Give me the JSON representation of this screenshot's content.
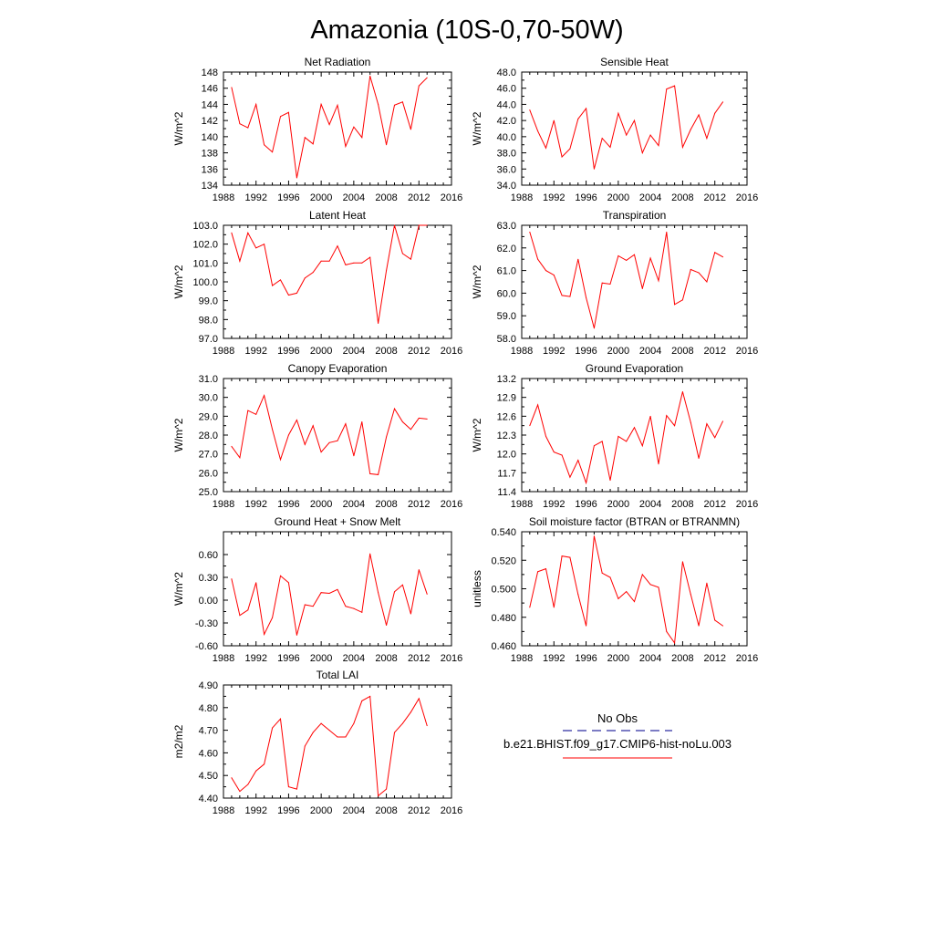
{
  "figure_title": "Amazonia (10S-0,70-50W)",
  "legend": {
    "obs_label": "No Obs",
    "obs_color": "#2f2fa0",
    "model_label": "b.e21.BHIST.f09_g17.CMIP6-hist-noLu.003",
    "model_color": "#ff0000"
  },
  "chart_data": [
    {
      "type": "line",
      "title": "Net Radiation",
      "ylabel": "W/m^2",
      "xlim": [
        1988,
        2016
      ],
      "ylim": [
        134,
        148
      ],
      "xticks": [
        "1988",
        "1992",
        "1996",
        "2000",
        "2004",
        "2008",
        "2012",
        "2016"
      ],
      "yticks": [
        "134",
        "136",
        "138",
        "140",
        "142",
        "144",
        "146",
        "148"
      ],
      "series": [
        {
          "x": [
            1989,
            1990,
            1991,
            1992,
            1993,
            1994,
            1995,
            1996,
            1997,
            1998,
            1999,
            2000,
            2001,
            2002,
            2003,
            2004,
            2005,
            2006,
            2007,
            2008,
            2009,
            2010,
            2011,
            2012,
            2013
          ],
          "values": [
            146.1,
            141.6,
            141.1,
            144.0,
            139.0,
            138.1,
            142.5,
            143.0,
            134.9,
            139.9,
            139.1,
            144.0,
            141.5,
            143.9,
            138.8,
            141.2,
            139.9,
            147.5,
            144.0,
            139.0,
            143.9,
            144.3,
            140.9,
            146.3,
            147.3
          ]
        }
      ]
    },
    {
      "type": "line",
      "title": "Sensible Heat",
      "ylabel": "W/m^2",
      "xlim": [
        1988,
        2016
      ],
      "ylim": [
        34.0,
        48.0
      ],
      "xticks": [
        "1988",
        "1992",
        "1996",
        "2000",
        "2004",
        "2008",
        "2012",
        "2016"
      ],
      "yticks": [
        "34.0",
        "36.0",
        "38.0",
        "40.0",
        "42.0",
        "44.0",
        "46.0",
        "48.0"
      ],
      "series": [
        {
          "x": [
            1989,
            1990,
            1991,
            1992,
            1993,
            1994,
            1995,
            1996,
            1997,
            1998,
            1999,
            2000,
            2001,
            2002,
            2003,
            2004,
            2005,
            2006,
            2007,
            2008,
            2009,
            2010,
            2011,
            2012,
            2013
          ],
          "values": [
            43.3,
            40.7,
            38.6,
            42.0,
            37.5,
            38.5,
            42.2,
            43.5,
            36.0,
            39.8,
            38.7,
            42.9,
            40.2,
            42.0,
            38.0,
            40.2,
            38.9,
            45.9,
            46.3,
            38.7,
            40.9,
            42.7,
            39.8,
            42.9,
            44.3
          ]
        }
      ]
    },
    {
      "type": "line",
      "title": "Latent Heat",
      "ylabel": "W/m^2",
      "xlim": [
        1988,
        2016
      ],
      "ylim": [
        97.0,
        103.0
      ],
      "xticks": [
        "1988",
        "1992",
        "1996",
        "2000",
        "2004",
        "2008",
        "2012",
        "2016"
      ],
      "yticks": [
        "97.0",
        "98.0",
        "99.0",
        "100.0",
        "101.0",
        "102.0",
        "103.0"
      ],
      "series": [
        {
          "x": [
            1989,
            1990,
            1991,
            1992,
            1993,
            1994,
            1995,
            1996,
            1997,
            1998,
            1999,
            2000,
            2001,
            2002,
            2003,
            2004,
            2005,
            2006,
            2007,
            2008,
            2009,
            2010,
            2011,
            2012,
            2013
          ],
          "values": [
            102.6,
            101.1,
            102.6,
            101.8,
            102.0,
            99.8,
            100.1,
            99.3,
            99.4,
            100.2,
            100.5,
            101.1,
            101.1,
            101.9,
            100.9,
            101.0,
            101.0,
            101.3,
            97.8,
            100.6,
            103.0,
            101.5,
            101.2,
            103.0,
            103.0
          ]
        }
      ]
    },
    {
      "type": "line",
      "title": "Transpiration",
      "ylabel": "W/m^2",
      "xlim": [
        1988,
        2016
      ],
      "ylim": [
        58.0,
        63.0
      ],
      "xticks": [
        "1988",
        "1992",
        "1996",
        "2000",
        "2004",
        "2008",
        "2012",
        "2016"
      ],
      "yticks": [
        "58.0",
        "59.0",
        "60.0",
        "61.0",
        "62.0",
        "63.0"
      ],
      "series": [
        {
          "x": [
            1989,
            1990,
            1991,
            1992,
            1993,
            1994,
            1995,
            1996,
            1997,
            1998,
            1999,
            2000,
            2001,
            2002,
            2003,
            2004,
            2005,
            2006,
            2007,
            2008,
            2009,
            2010,
            2011,
            2012,
            2013
          ],
          "values": [
            62.7,
            61.5,
            61.0,
            60.8,
            59.9,
            59.85,
            61.5,
            59.8,
            58.45,
            60.45,
            60.4,
            61.65,
            61.45,
            61.7,
            60.2,
            61.55,
            60.55,
            62.7,
            59.5,
            59.7,
            61.05,
            60.9,
            60.5,
            61.8,
            61.6
          ]
        }
      ]
    },
    {
      "type": "line",
      "title": "Canopy Evaporation",
      "ylabel": "W/m^2",
      "xlim": [
        1988,
        2016
      ],
      "ylim": [
        25.0,
        31.0
      ],
      "xticks": [
        "1988",
        "1992",
        "1996",
        "2000",
        "2004",
        "2008",
        "2012",
        "2016"
      ],
      "yticks": [
        "25.0",
        "26.0",
        "27.0",
        "28.0",
        "29.0",
        "30.0",
        "31.0"
      ],
      "series": [
        {
          "x": [
            1989,
            1990,
            1991,
            1992,
            1993,
            1994,
            1995,
            1996,
            1997,
            1998,
            1999,
            2000,
            2001,
            2002,
            2003,
            2004,
            2005,
            2006,
            2007,
            2008,
            2009,
            2010,
            2011,
            2012,
            2013
          ],
          "values": [
            27.4,
            26.8,
            29.3,
            29.1,
            30.1,
            28.3,
            26.7,
            28.0,
            28.8,
            27.5,
            28.5,
            27.1,
            27.6,
            27.7,
            28.6,
            26.9,
            28.7,
            25.95,
            25.9,
            27.9,
            29.4,
            28.7,
            28.3,
            28.9,
            28.85
          ]
        }
      ]
    },
    {
      "type": "line",
      "title": "Ground Evaporation",
      "ylabel": "W/m^2",
      "xlim": [
        1988,
        2016
      ],
      "ylim": [
        11.4,
        13.2
      ],
      "xticks": [
        "1988",
        "1992",
        "1996",
        "2000",
        "2004",
        "2008",
        "2012",
        "2016"
      ],
      "yticks": [
        "11.4",
        "11.7",
        "12.0",
        "12.3",
        "12.6",
        "12.9",
        "13.2"
      ],
      "series": [
        {
          "x": [
            1989,
            1990,
            1991,
            1992,
            1993,
            1994,
            1995,
            1996,
            1997,
            1998,
            1999,
            2000,
            2001,
            2002,
            2003,
            2004,
            2005,
            2006,
            2007,
            2008,
            2009,
            2010,
            2011,
            2012,
            2013
          ],
          "values": [
            12.45,
            12.78,
            12.28,
            12.03,
            11.98,
            11.63,
            11.9,
            11.54,
            12.13,
            12.2,
            11.58,
            12.28,
            12.2,
            12.42,
            12.13,
            12.6,
            11.84,
            12.61,
            12.45,
            12.99,
            12.5,
            11.93,
            12.48,
            12.26,
            12.52
          ]
        }
      ]
    },
    {
      "type": "line",
      "title": "Ground Heat + Snow Melt",
      "ylabel": "W/m^2",
      "xlim": [
        1988,
        2016
      ],
      "ylim": [
        -0.6,
        0.9
      ],
      "xticks": [
        "1988",
        "1992",
        "1996",
        "2000",
        "2004",
        "2008",
        "2012",
        "2016"
      ],
      "yticks": [
        "-0.60",
        "-0.30",
        "0.00",
        "0.30",
        "0.60"
      ],
      "ytick_values": [
        -0.6,
        -0.3,
        0.0,
        0.3,
        0.6
      ],
      "series": [
        {
          "x": [
            1989,
            1990,
            1991,
            1992,
            1993,
            1994,
            1995,
            1996,
            1997,
            1998,
            1999,
            2000,
            2001,
            2002,
            2003,
            2004,
            2005,
            2006,
            2007,
            2008,
            2009,
            2010,
            2011,
            2012,
            2013
          ],
          "values": [
            0.28,
            -0.2,
            -0.13,
            0.23,
            -0.45,
            -0.23,
            0.32,
            0.23,
            -0.46,
            -0.06,
            -0.08,
            0.1,
            0.09,
            0.14,
            -0.08,
            -0.11,
            -0.16,
            0.61,
            0.1,
            -0.33,
            0.11,
            0.2,
            -0.18,
            0.4,
            0.08
          ]
        }
      ]
    },
    {
      "type": "line",
      "title": "Soil moisture factor (BTRAN or BTRANMN)",
      "ylabel": "unitless",
      "xlim": [
        1988,
        2016
      ],
      "ylim": [
        0.46,
        0.54
      ],
      "xticks": [
        "1988",
        "1992",
        "1996",
        "2000",
        "2004",
        "2008",
        "2012",
        "2016"
      ],
      "yticks": [
        "0.460",
        "0.480",
        "0.500",
        "0.520",
        "0.540"
      ],
      "series": [
        {
          "x": [
            1989,
            1990,
            1991,
            1992,
            1993,
            1994,
            1995,
            1996,
            1997,
            1998,
            1999,
            2000,
            2001,
            2002,
            2003,
            2004,
            2005,
            2006,
            2007,
            2008,
            2009,
            2010,
            2011,
            2012,
            2013
          ],
          "values": [
            0.487,
            0.512,
            0.514,
            0.487,
            0.523,
            0.522,
            0.496,
            0.474,
            0.537,
            0.511,
            0.508,
            0.493,
            0.498,
            0.491,
            0.51,
            0.503,
            0.501,
            0.47,
            0.462,
            0.519,
            0.496,
            0.474,
            0.504,
            0.478,
            0.474
          ]
        }
      ]
    },
    {
      "type": "line",
      "title": "Total LAI",
      "ylabel": "m2/m2",
      "xlim": [
        1988,
        2016
      ],
      "ylim": [
        4.4,
        4.9
      ],
      "xticks": [
        "1988",
        "1992",
        "1996",
        "2000",
        "2004",
        "2008",
        "2012",
        "2016"
      ],
      "yticks": [
        "4.40",
        "4.50",
        "4.60",
        "4.70",
        "4.80",
        "4.90"
      ],
      "series": [
        {
          "x": [
            1989,
            1990,
            1991,
            1992,
            1993,
            1994,
            1995,
            1996,
            1997,
            1998,
            1999,
            2000,
            2001,
            2002,
            2003,
            2004,
            2005,
            2006,
            2007,
            2008,
            2009,
            2010,
            2011,
            2012,
            2013
          ],
          "values": [
            4.49,
            4.43,
            4.46,
            4.52,
            4.55,
            4.71,
            4.75,
            4.45,
            4.44,
            4.63,
            4.69,
            4.73,
            4.7,
            4.67,
            4.67,
            4.73,
            4.83,
            4.85,
            4.41,
            4.44,
            4.69,
            4.73,
            4.78,
            4.84,
            4.72
          ]
        }
      ]
    }
  ]
}
